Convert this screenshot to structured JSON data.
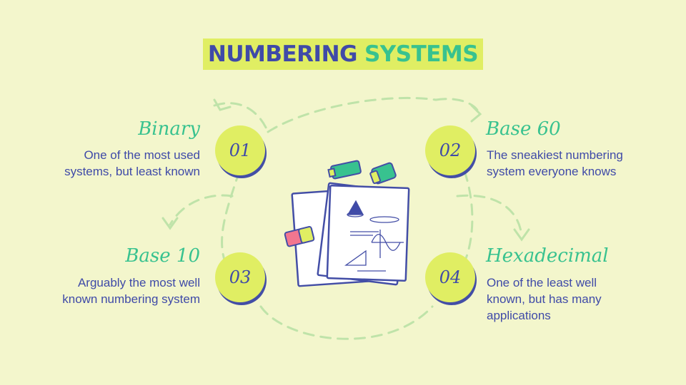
{
  "title": {
    "part1": "NUMBERING",
    "part2": "SYSTEMS"
  },
  "items": [
    {
      "number": "01",
      "heading": "Binary",
      "description": "One of the most used systems, but least known"
    },
    {
      "number": "02",
      "heading": "Base 60",
      "description": "The sneakiest numbering system everyone knows"
    },
    {
      "number": "03",
      "heading": "Base 10",
      "description": "Arguably the most well known numbering system"
    },
    {
      "number": "04",
      "heading": "Hexadecimal",
      "description": "One of the least well known, but has many applications"
    }
  ],
  "colors": {
    "background": "#f3f6cc",
    "accent": "#e0ee63",
    "blue": "#3f4aa8",
    "green": "#38c28f"
  },
  "illustration": {
    "icons": [
      "papers-with-math-icon",
      "highlighter-icon",
      "tape-icon",
      "eraser-icon"
    ]
  }
}
